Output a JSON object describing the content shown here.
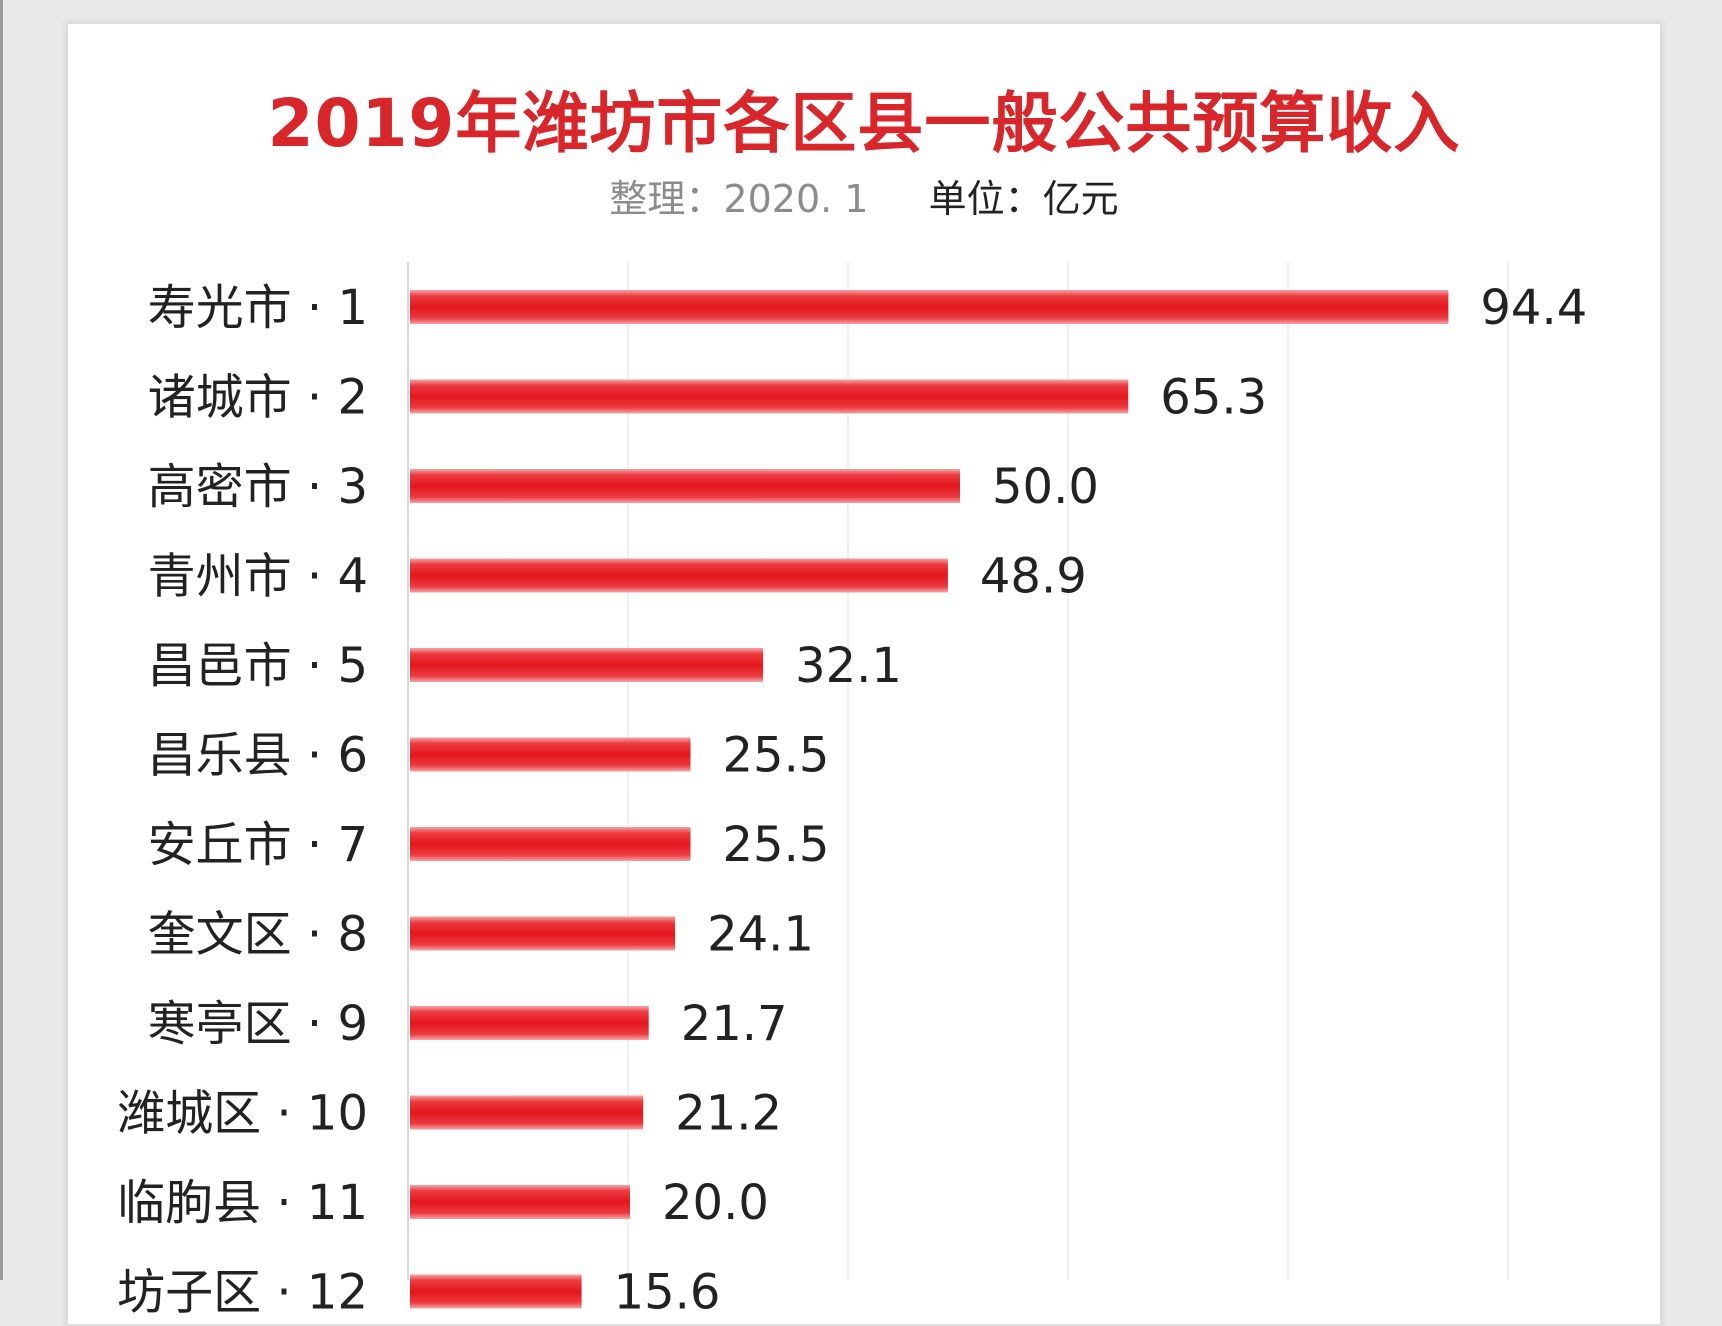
{
  "chart_data": {
    "type": "bar",
    "orientation": "horizontal",
    "title": "2019年潍坊市各区县一般公共预算收入",
    "subtitle_note": "整理：2020. 1",
    "subtitle_unit": "单位：亿元",
    "categories": [
      "寿光市 · 1",
      "诸城市 · 2",
      "高密市 · 3",
      "青州市 · 4",
      "昌邑市 · 5",
      "昌乐县 · 6",
      "安丘市 · 7",
      "奎文区 · 8",
      "寒亭区 · 9",
      "潍城区 · 10",
      "临朐县 · 11",
      "坊子区 · 12"
    ],
    "values": [
      94.4,
      65.3,
      50.0,
      48.9,
      32.1,
      25.5,
      25.5,
      24.1,
      21.7,
      21.2,
      20.0,
      15.6
    ],
    "value_labels": [
      "94.4",
      "65.3",
      "50.0",
      "48.9",
      "32.1",
      "25.5",
      "25.5",
      "24.1",
      "21.7",
      "21.2",
      "20.0",
      "15.6"
    ],
    "xlim": [
      0,
      110
    ],
    "grid": true,
    "bar_color": "#e8232a",
    "title_color": "#d8262b"
  }
}
